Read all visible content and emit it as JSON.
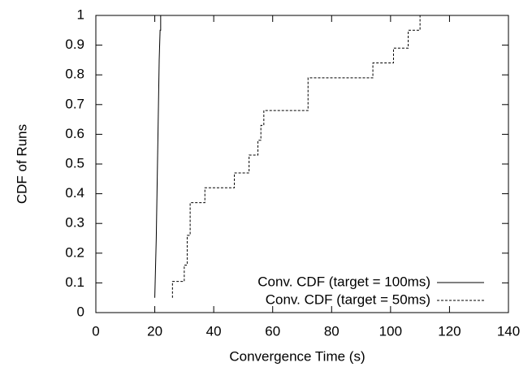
{
  "chart_data": {
    "type": "line",
    "xlabel": "Convergence Time (s)",
    "ylabel": "CDF of Runs",
    "xlim": [
      0,
      140
    ],
    "xticks": [
      0,
      20,
      40,
      60,
      80,
      100,
      120,
      140
    ],
    "ylim": [
      0,
      1
    ],
    "yticks": [
      0,
      0.1,
      0.2,
      0.3,
      0.4,
      0.5,
      0.6,
      0.7,
      0.8,
      0.9,
      1
    ],
    "legend": "lower-right",
    "series": [
      {
        "name": "Conv. CDF (target = 100ms)",
        "color": "#000000",
        "dash": "solid",
        "x": [
          20,
          20.5,
          21,
          21.5,
          21.8,
          22,
          22
        ],
        "values": [
          0.05,
          0.25,
          0.55,
          0.85,
          0.95,
          0.95,
          1
        ]
      },
      {
        "name": "Conv. CDF (target = 50ms)",
        "color": "#000000",
        "dash": "dashed",
        "x": [
          26,
          26,
          30,
          30,
          31,
          31,
          32,
          32,
          37,
          37,
          47,
          47,
          52,
          52,
          55,
          55,
          56,
          56,
          57,
          57,
          72,
          72,
          94,
          94,
          101,
          101,
          106,
          106,
          110,
          110
        ],
        "values": [
          0.05,
          0.105,
          0.105,
          0.16,
          0.16,
          0.26,
          0.26,
          0.37,
          0.37,
          0.42,
          0.42,
          0.47,
          0.47,
          0.53,
          0.53,
          0.58,
          0.58,
          0.63,
          0.63,
          0.68,
          0.68,
          0.79,
          0.79,
          0.84,
          0.84,
          0.89,
          0.89,
          0.95,
          0.95,
          1
        ]
      }
    ]
  }
}
